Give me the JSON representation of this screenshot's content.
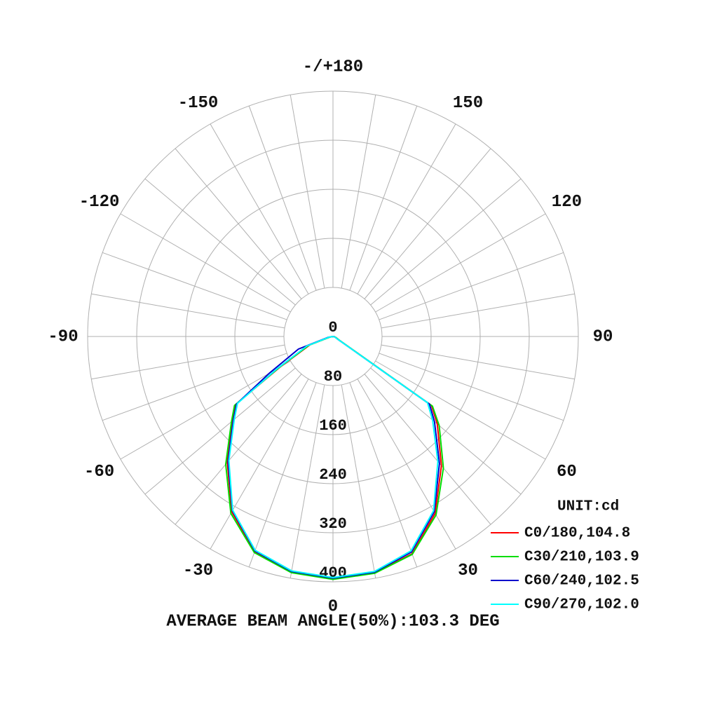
{
  "chart_data": {
    "type": "polar",
    "theta": [
      -90,
      -80,
      -70,
      -60,
      -55,
      -50,
      -40,
      -30,
      -20,
      -10,
      0,
      10,
      20,
      30,
      40,
      50,
      55,
      60,
      70,
      80,
      90
    ],
    "series": [
      {
        "name": "C0/180,104.8",
        "color": "#ff0000",
        "values": [
          0,
          5,
          40,
          100,
          195,
          215,
          268,
          330,
          373,
          390,
          395,
          391,
          377,
          333,
          275,
          222,
          196,
          10,
          5,
          2,
          0
        ]
      },
      {
        "name": "C30/210,103.9",
        "color": "#00dd00",
        "values": [
          0,
          5,
          42,
          102,
          196,
          216,
          272,
          333,
          375,
          391,
          396,
          392,
          378,
          336,
          280,
          226,
          198,
          12,
          5,
          2,
          0
        ]
      },
      {
        "name": "C60/240,102.5",
        "color": "#0000cc",
        "values": [
          0,
          8,
          60,
          120,
          192,
          212,
          266,
          328,
          372,
          389,
          394,
          390,
          374,
          330,
          270,
          216,
          192,
          8,
          4,
          2,
          0
        ]
      },
      {
        "name": "C90/270,102.0",
        "color": "#00ffff",
        "values": [
          0,
          6,
          45,
          105,
          190,
          210,
          264,
          327,
          371,
          388,
          393,
          389,
          372,
          328,
          266,
          212,
          188,
          8,
          4,
          1,
          0
        ]
      }
    ],
    "rlim": [
      0,
      400
    ],
    "rticks": [
      0,
      80,
      160,
      240,
      320,
      400
    ],
    "thetaticks": [
      {
        "value": 180,
        "label": "-/+180"
      },
      150,
      120,
      90,
      60,
      30,
      0,
      -30,
      -60,
      -90,
      -120,
      -150
    ],
    "unit_label": "UNIT:cd",
    "footer": "AVERAGE BEAM ANGLE(50%):103.3 DEG"
  }
}
